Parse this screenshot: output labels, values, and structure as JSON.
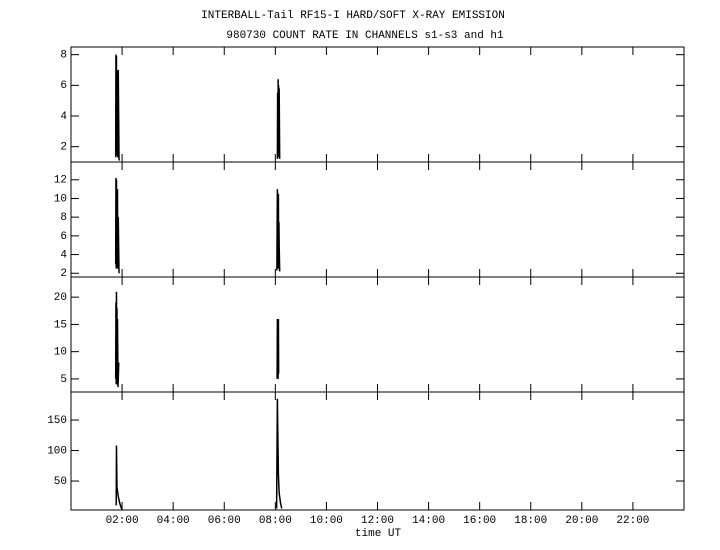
{
  "chart_data": [
    {
      "type": "line",
      "title": "INTERBALL-Tail RF15-I HARD/SOFT X-RAY EMISSION",
      "subtitle": "980730  COUNT RATE IN CHANNELS s1-s3 and h1",
      "xlim": [
        0,
        24
      ],
      "ylim": [
        1,
        8.5
      ],
      "yticks": [
        2,
        4,
        6,
        8
      ],
      "series": [
        {
          "color": "#000000",
          "x": [
            1.75,
            1.76,
            1.77,
            1.78,
            1.79,
            1.8,
            1.81,
            1.82,
            1.83,
            1.85,
            1.88,
            1.9,
            5,
            8.08,
            8.09,
            8.1,
            8.11,
            8.12,
            8.13,
            8.14,
            8.15,
            8.17
          ],
          "values": [
            1.3,
            8,
            1.5,
            7.9,
            2,
            7,
            1.4,
            5.5,
            1.3,
            7,
            1.2,
            1.1,
            null,
            1.2,
            5.5,
            1.4,
            6.4,
            1.5,
            6,
            1.3,
            5.8,
            1.2
          ]
        }
      ]
    },
    {
      "type": "line",
      "xlim": [
        0,
        24
      ],
      "ylim": [
        1.6,
        13.9
      ],
      "yticks": [
        2,
        4,
        6,
        8,
        10,
        12
      ],
      "series": [
        {
          "color": "#000000",
          "x": [
            1.75,
            1.76,
            1.77,
            1.78,
            1.79,
            1.8,
            1.81,
            1.82,
            1.83,
            1.85,
            1.88,
            5,
            8.06,
            8.08,
            8.09,
            8.1,
            8.11,
            8.12,
            8.13,
            8.14,
            8.15,
            8.17
          ],
          "values": [
            3,
            12.2,
            2.5,
            12,
            3,
            10.5,
            2.8,
            11,
            2.5,
            8,
            2,
            null,
            2.3,
            11,
            2.5,
            10.2,
            3,
            10.5,
            2.5,
            7.5,
            5,
            2.2
          ]
        }
      ]
    },
    {
      "type": "line",
      "xlim": [
        0,
        24
      ],
      "ylim": [
        2.6,
        23.7
      ],
      "yticks": [
        5,
        10,
        15,
        20
      ],
      "series": [
        {
          "color": "#000000",
          "x": [
            1.75,
            1.76,
            1.77,
            1.78,
            1.79,
            1.8,
            1.81,
            1.82,
            1.84,
            1.87,
            5,
            8.07,
            8.08,
            8.09,
            8.1,
            8.11,
            8.12,
            8.13
          ],
          "values": [
            5,
            19,
            4,
            21,
            6,
            18,
            4,
            16,
            3.5,
            8,
            null,
            5,
            16,
            5,
            15.8,
            5,
            16,
            6
          ]
        }
      ]
    },
    {
      "type": "line",
      "xlim": [
        0,
        24
      ],
      "ylim": [
        2.5,
        196
      ],
      "yticks": [
        50,
        100,
        150
      ],
      "xlabel": "time UT",
      "xticks": [
        {
          "value": 2,
          "label": "02:00"
        },
        {
          "value": 4,
          "label": "04:00"
        },
        {
          "value": 6,
          "label": "06:00"
        },
        {
          "value": 8,
          "label": "08:00"
        },
        {
          "value": 10,
          "label": "10:00"
        },
        {
          "value": 12,
          "label": "12:00"
        },
        {
          "value": 14,
          "label": "14:00"
        },
        {
          "value": 16,
          "label": "16:00"
        },
        {
          "value": 18,
          "label": "18:00"
        },
        {
          "value": 20,
          "label": "20:00"
        },
        {
          "value": 22,
          "label": "22:00"
        }
      ],
      "series": [
        {
          "color": "#000000",
          "x": [
            1.77,
            1.78,
            1.8,
            1.85,
            1.9,
            1.95,
            2.0,
            5,
            8.05,
            8.08,
            8.1,
            8.12,
            8.15,
            8.2,
            8.25
          ],
          "values": [
            10,
            108,
            40,
            25,
            15,
            8,
            3,
            null,
            5,
            185,
            120,
            60,
            30,
            15,
            5
          ]
        }
      ]
    }
  ]
}
